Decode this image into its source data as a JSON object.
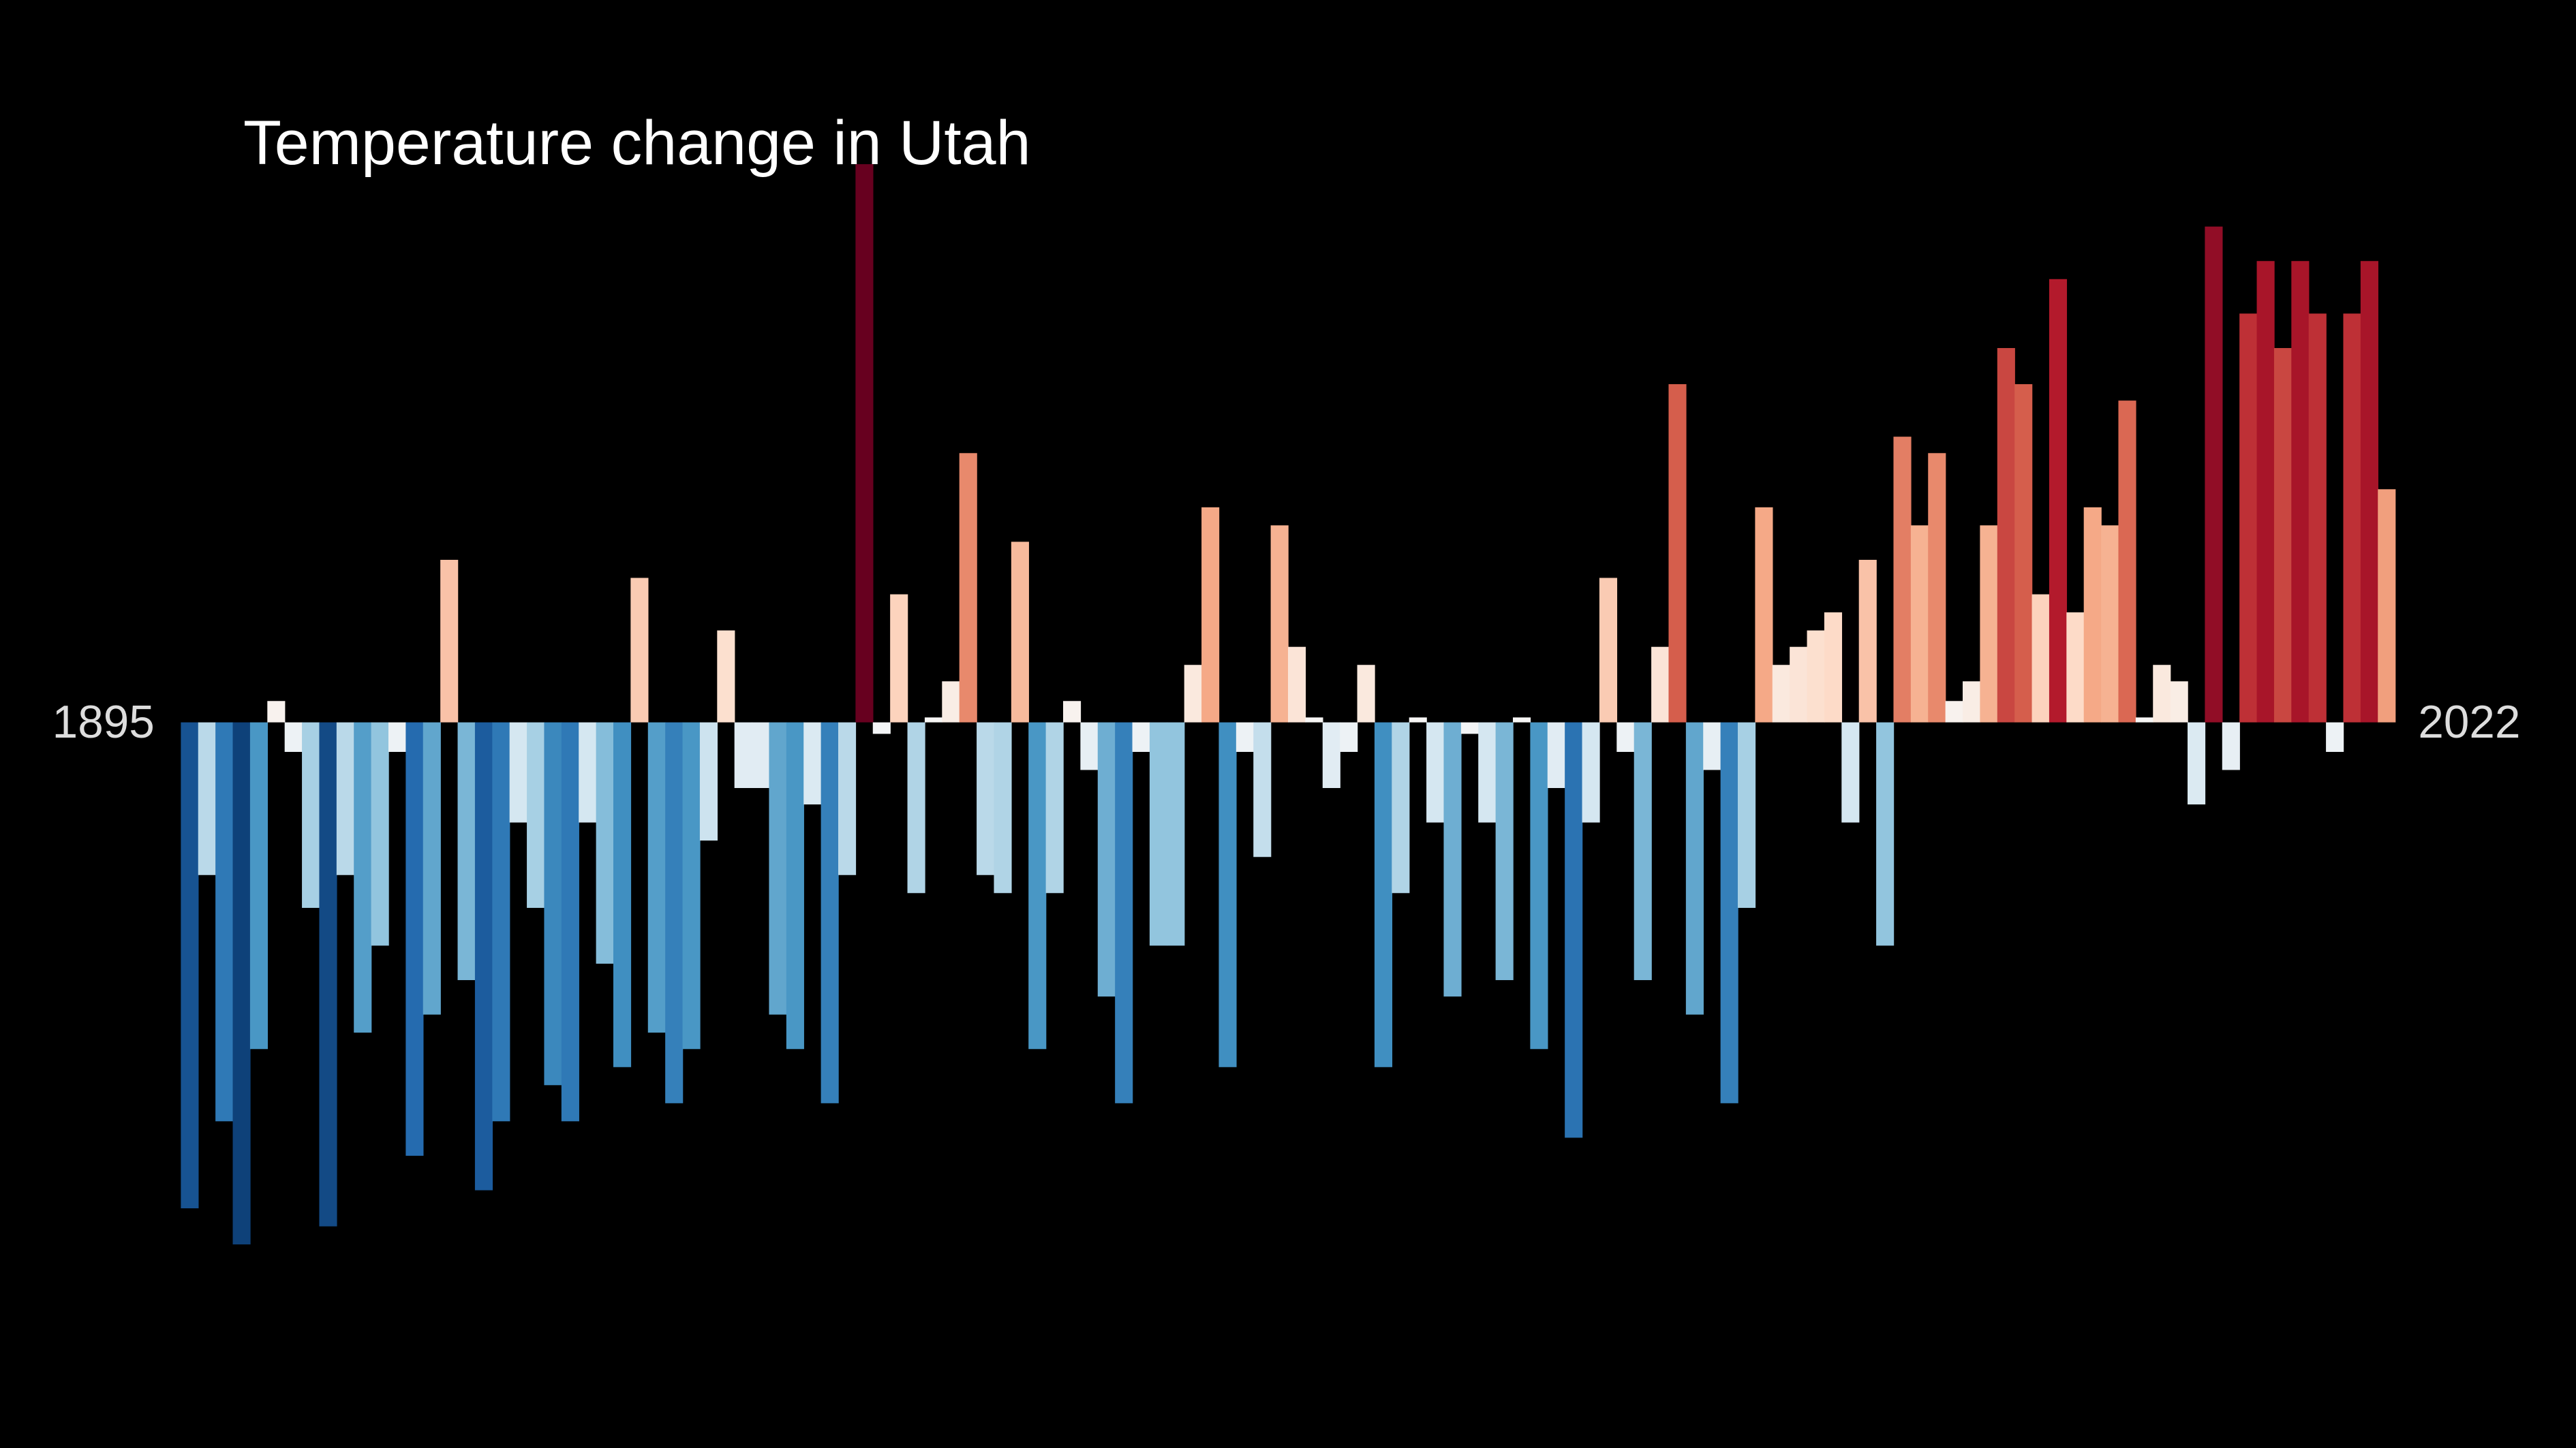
{
  "chart_data": {
    "type": "bar",
    "title": "Temperature change in Utah",
    "categories": [
      "1895",
      null,
      null,
      null,
      null,
      null,
      null,
      null,
      null,
      null,
      null,
      null,
      null,
      null,
      null,
      null,
      null,
      null,
      null,
      null,
      null,
      null,
      null,
      null,
      null,
      null,
      null,
      null,
      null,
      null,
      null,
      null,
      null,
      null,
      null,
      null,
      null,
      null,
      null,
      null,
      null,
      null,
      null,
      null,
      null,
      null,
      null,
      null,
      null,
      null,
      null,
      null,
      null,
      null,
      null,
      null,
      null,
      null,
      null,
      null,
      null,
      null,
      null,
      null,
      null,
      null,
      null,
      null,
      null,
      null,
      null,
      null,
      null,
      null,
      null,
      null,
      null,
      null,
      null,
      null,
      null,
      null,
      null,
      null,
      null,
      null,
      null,
      null,
      null,
      null,
      null,
      null,
      null,
      null,
      null,
      null,
      null,
      null,
      null,
      null,
      null,
      null,
      null,
      null,
      null,
      null,
      null,
      null,
      null,
      null,
      null,
      null,
      null,
      null,
      null,
      null,
      null,
      null,
      null,
      null,
      null,
      null,
      null,
      null,
      null,
      null,
      null,
      "2022"
    ],
    "values": [
      -2.96,
      -0.93,
      -2.43,
      -3.18,
      -1.99,
      0.13,
      -0.18,
      -1.13,
      -3.07,
      -0.93,
      -1.89,
      -1.36,
      -0.18,
      -2.64,
      -1.78,
      0.99,
      -1.57,
      -2.85,
      -2.43,
      -0.61,
      -1.13,
      -2.21,
      -2.43,
      -0.61,
      -1.47,
      -2.1,
      0.88,
      -1.89,
      -2.32,
      -1.99,
      -0.72,
      0.56,
      -0.4,
      -0.4,
      -1.78,
      -1.99,
      -0.5,
      -2.32,
      -0.93,
      3.4,
      -0.07,
      0.78,
      -1.04,
      0.03,
      0.25,
      1.64,
      -0.93,
      -1.04,
      1.1,
      -1.99,
      -1.04,
      0.13,
      -0.29,
      -1.67,
      -2.32,
      -0.18,
      -1.36,
      -1.36,
      0.35,
      1.31,
      -2.1,
      -0.18,
      -0.82,
      1.2,
      0.46,
      0.03,
      -0.4,
      -0.18,
      0.35,
      -2.1,
      -1.04,
      0.03,
      -0.61,
      -1.67,
      -0.07,
      -0.61,
      -1.57,
      0.03,
      -1.99,
      -0.4,
      -2.53,
      -0.61,
      0.88,
      -0.18,
      -1.57,
      0.46,
      2.06,
      -1.78,
      -0.29,
      -2.32,
      -1.13,
      1.31,
      0.35,
      0.46,
      0.56,
      0.67,
      -0.61,
      0.99,
      -1.36,
      1.74,
      1.2,
      1.64,
      0.13,
      0.25,
      1.2,
      2.28,
      2.06,
      0.78,
      2.7,
      0.67,
      1.31,
      1.2,
      1.96,
      0.03,
      0.35,
      0.25,
      -0.5,
      3.02,
      -0.29,
      2.49,
      2.81,
      2.28,
      2.81,
      2.49,
      -0.18,
      2.49,
      2.81,
      1.42
    ],
    "ylim": [
      -3.4,
      3.4
    ],
    "colormap": [
      "#053061",
      "#2166ac",
      "#4393c3",
      "#92c5de",
      "#d1e5f0",
      "#f7f7f7",
      "#fddbc7",
      "#f4a582",
      "#d6604d",
      "#b2182b",
      "#67001f"
    ],
    "background": "#000000"
  }
}
